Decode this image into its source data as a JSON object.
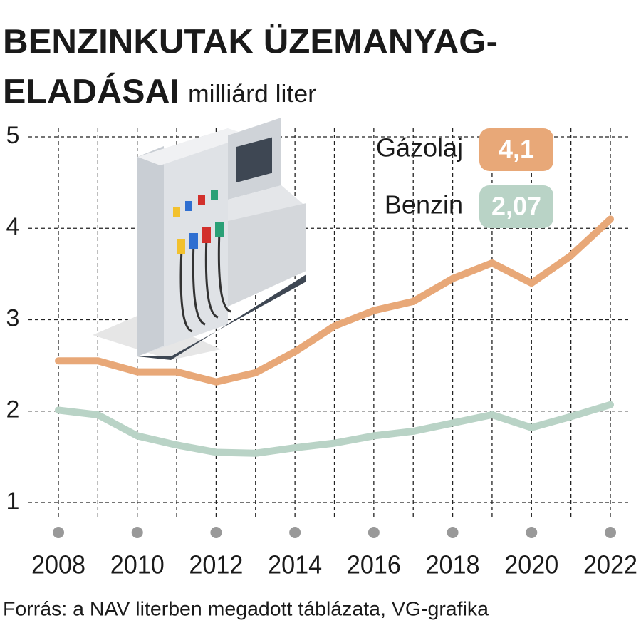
{
  "chart_data": {
    "type": "line",
    "title": "BENZINKUTAK ÜZEMANYAG-\nELADÁSAI",
    "subtitle": "milliárd liter",
    "source": "Forrás: a NAV literben megadott táblázata, VG-grafika",
    "x": [
      2008,
      2009,
      2010,
      2011,
      2012,
      2013,
      2014,
      2015,
      2016,
      2017,
      2018,
      2019,
      2020,
      2021,
      2022
    ],
    "series": [
      {
        "name": "Gázolaj",
        "color": "#e8a878",
        "values": [
          2.55,
          2.55,
          2.43,
          2.43,
          2.32,
          2.42,
          2.65,
          2.93,
          3.1,
          3.2,
          3.45,
          3.62,
          3.4,
          3.7,
          4.1
        ],
        "value_labels": [
          null,
          null,
          null,
          null,
          null,
          null,
          null,
          null,
          null,
          null,
          null,
          null,
          null,
          null,
          "4,1"
        ]
      },
      {
        "name": "Benzin",
        "color": "#b9d3c6",
        "values": [
          2.01,
          1.96,
          1.73,
          1.63,
          1.55,
          1.54,
          1.6,
          1.65,
          1.73,
          1.78,
          1.87,
          1.96,
          1.82,
          1.94,
          2.07
        ],
        "value_labels": [
          null,
          null,
          null,
          null,
          null,
          null,
          null,
          null,
          null,
          null,
          null,
          null,
          null,
          null,
          "2,07"
        ]
      }
    ],
    "xlim": [
      2008,
      2022
    ],
    "xticks": [
      2008,
      2010,
      2012,
      2014,
      2016,
      2018,
      2020,
      2022
    ],
    "ylim": [
      1,
      5
    ],
    "yticks": [
      1,
      2,
      3,
      4,
      5
    ],
    "grid": true
  }
}
